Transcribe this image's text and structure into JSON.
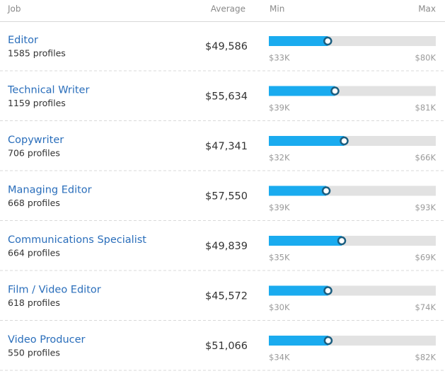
{
  "header": {
    "job": "Job",
    "average": "Average",
    "min": "Min",
    "max": "Max"
  },
  "rows": [
    {
      "title": "Editor",
      "profiles": "1585 profiles",
      "average": {
        "value": 49586,
        "label": "$49,586"
      },
      "min": {
        "value": 33000,
        "label": "$33K"
      },
      "max": {
        "value": 80000,
        "label": "$80K"
      }
    },
    {
      "title": "Technical Writer",
      "profiles": "1159 profiles",
      "average": {
        "value": 55634,
        "label": "$55,634"
      },
      "min": {
        "value": 39000,
        "label": "$39K"
      },
      "max": {
        "value": 81000,
        "label": "$81K"
      }
    },
    {
      "title": "Copywriter",
      "profiles": "706 profiles",
      "average": {
        "value": 47341,
        "label": "$47,341"
      },
      "min": {
        "value": 32000,
        "label": "$32K"
      },
      "max": {
        "value": 66000,
        "label": "$66K"
      }
    },
    {
      "title": "Managing Editor",
      "profiles": "668 profiles",
      "average": {
        "value": 57550,
        "label": "$57,550"
      },
      "min": {
        "value": 39000,
        "label": "$39K"
      },
      "max": {
        "value": 93000,
        "label": "$93K"
      }
    },
    {
      "title": "Communications Specialist",
      "profiles": "664 profiles",
      "average": {
        "value": 49839,
        "label": "$49,839"
      },
      "min": {
        "value": 35000,
        "label": "$35K"
      },
      "max": {
        "value": 69000,
        "label": "$69K"
      }
    },
    {
      "title": "Film / Video Editor",
      "profiles": "618 profiles",
      "average": {
        "value": 45572,
        "label": "$45,572"
      },
      "min": {
        "value": 30000,
        "label": "$30K"
      },
      "max": {
        "value": 74000,
        "label": "$74K"
      }
    },
    {
      "title": "Video Producer",
      "profiles": "550 profiles",
      "average": {
        "value": 51066,
        "label": "$51,066"
      },
      "min": {
        "value": 34000,
        "label": "$34K"
      },
      "max": {
        "value": 82000,
        "label": "$82K"
      }
    }
  ]
}
